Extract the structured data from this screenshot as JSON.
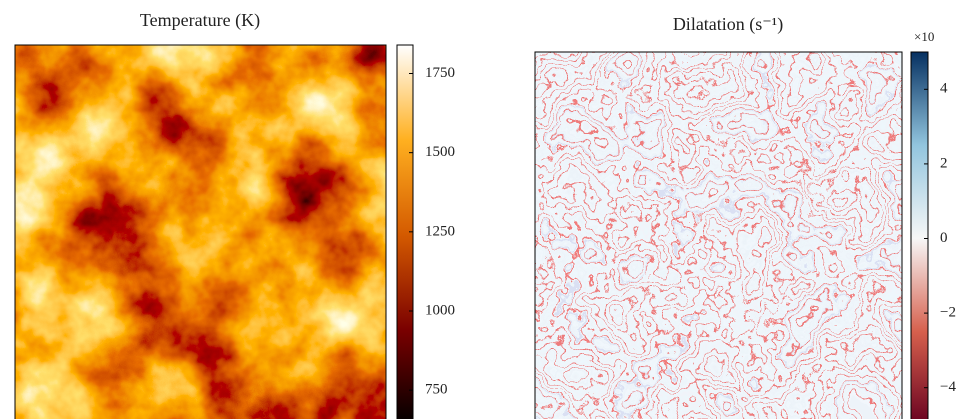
{
  "chart_data": [
    {
      "type": "heatmap",
      "title": "Temperature (K)",
      "clim": [
        640,
        1840
      ],
      "cticks": [
        750,
        1000,
        1250,
        1500,
        1750
      ],
      "colormap": [
        "#000000",
        "#7a0000",
        "#d45a00",
        "#ffb020",
        "#ffffff"
      ]
    },
    {
      "type": "heatmap",
      "title": "Dilatation (s⁻¹)",
      "offset_label": "×10",
      "clim": [
        -5,
        5
      ],
      "cticks": [
        {
          "value": -4,
          "label": "−4"
        },
        {
          "value": -2,
          "label": "−2"
        },
        0,
        2,
        4
      ],
      "colormap": [
        "#67001f",
        "#d6604d",
        "#f7f7f7",
        "#92c5de",
        "#053061"
      ]
    }
  ]
}
